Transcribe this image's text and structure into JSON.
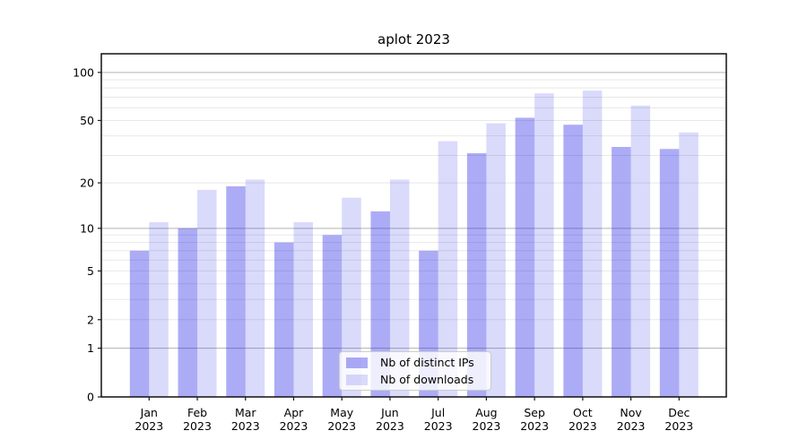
{
  "chart_data": {
    "type": "bar",
    "title": "aplot 2023",
    "months": [
      "Jan",
      "Feb",
      "Mar",
      "Apr",
      "May",
      "Jun",
      "Jul",
      "Aug",
      "Sep",
      "Oct",
      "Nov",
      "Dec"
    ],
    "year": "2023",
    "series": [
      {
        "name": "Nb of distinct IPs",
        "values": [
          7,
          10,
          19,
          8,
          9,
          13,
          7,
          31,
          52,
          47,
          34,
          33
        ],
        "color": "rgba(25,25,230,0.36)"
      },
      {
        "name": "Nb of downloads",
        "values": [
          11,
          18,
          21,
          11,
          16,
          21,
          37,
          48,
          74,
          77,
          62,
          42
        ],
        "color": "rgba(25,25,230,0.16)"
      }
    ],
    "yscale": "log1p",
    "ylim": [
      0,
      130
    ],
    "y_tick_labels": [
      "0",
      "1",
      "2",
      "5",
      "10",
      "20",
      "50",
      "100"
    ],
    "y_tick_values": [
      0,
      1,
      2,
      5,
      10,
      20,
      50,
      100
    ],
    "y_major_gridlines": [
      1,
      10,
      100
    ],
    "y_minor_gridlines": [
      2,
      3,
      4,
      5,
      6,
      7,
      8,
      9,
      20,
      30,
      40,
      50,
      60,
      70,
      80,
      90
    ],
    "grid": true,
    "legend_position": "lower center",
    "colors": {
      "major_grid": "#b3b3b3",
      "minor_grid": "#e8e8e8",
      "spine": "#000000",
      "tick": "#1a1a1a"
    }
  }
}
